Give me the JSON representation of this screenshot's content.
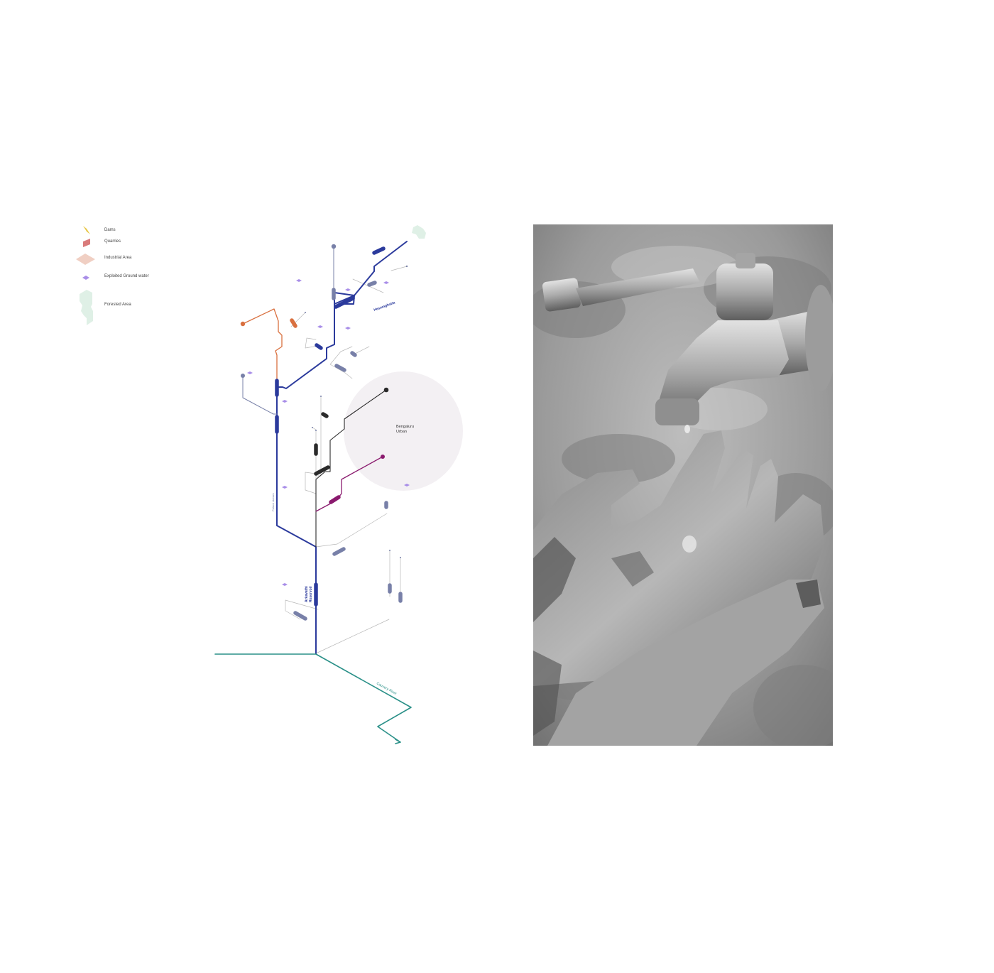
{
  "legend": {
    "items": [
      {
        "label": "Dams",
        "icon": "dam-icon",
        "color": "#e8c84a"
      },
      {
        "label": "Quarries",
        "icon": "quarry-icon",
        "color": "#d97b7b"
      },
      {
        "label": "Industrial Area",
        "icon": "industrial-area-icon",
        "color": "#f0cfc3"
      },
      {
        "label": "Exploited Ground water",
        "icon": "groundwater-icon",
        "color": "#a98ee8"
      },
      {
        "label": "Forested Area",
        "icon": "forest-icon",
        "color": "#dff0e6"
      }
    ]
  },
  "diagram": {
    "labels": {
      "hesaraghatta": "Hesaraghatta",
      "bengaluru_urban_line1": "Bengaluru",
      "bengaluru_urban_line2": "Urban",
      "arkavathi_reservoir_line1": "Arkavathi",
      "arkavathi_reservoir_line2": "Reservoir",
      "cauvery_river": "Cauvery River",
      "palace_stream": "Palace stream"
    },
    "colors": {
      "arkavathi": "#2b3a9c",
      "orange_branch": "#d9703f",
      "black_branch": "#2a2a2a",
      "magenta_branch": "#8a1a6e",
      "teal_river": "#2a9088",
      "lake": "#7880a8",
      "urban_circle": "#f3f0f3",
      "thin_line": "#b8b8b8"
    }
  },
  "photo": {
    "icon": "tap-and-hands-photo"
  }
}
